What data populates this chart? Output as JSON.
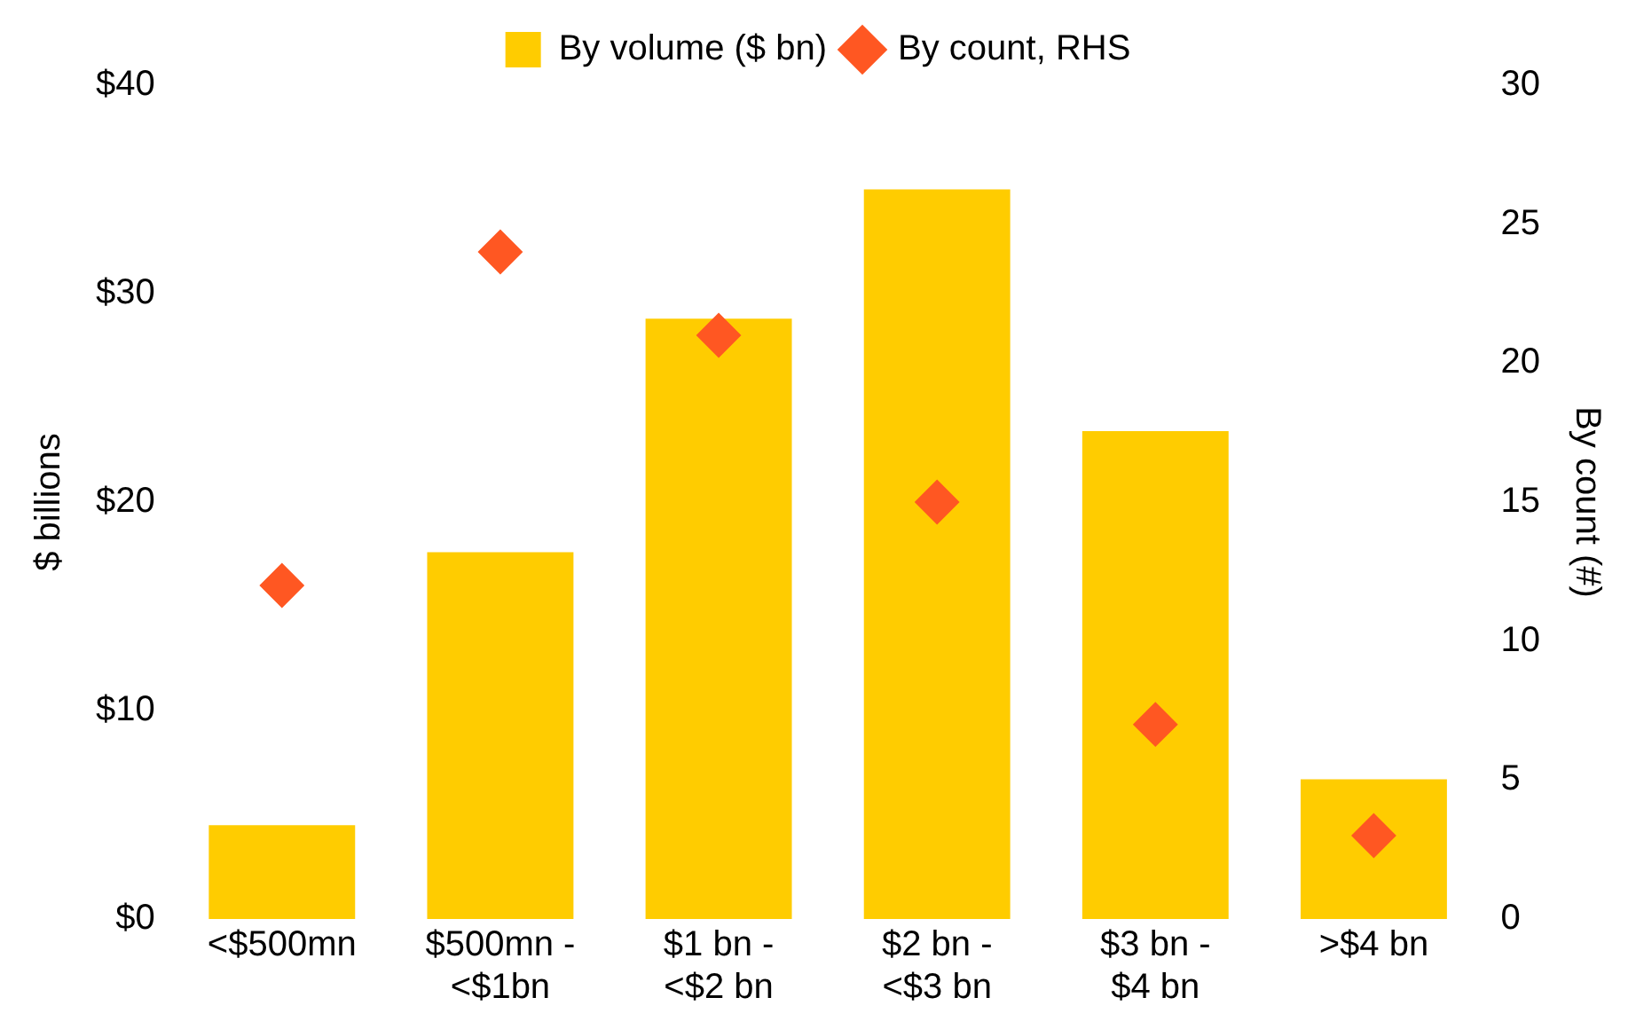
{
  "chart_data": {
    "type": "bar",
    "categories": [
      "<$500mn",
      "$500mn -\n<$1bn",
      "$1 bn -\n<$2 bn",
      "$2 bn -\n<$3 bn",
      "$3 bn -\n$4 bn",
      ">$4 bn"
    ],
    "series": [
      {
        "name": "By volume ($ bn)",
        "color": "#ffcc00",
        "values": [
          4.5,
          17.6,
          28.8,
          35.0,
          23.4,
          6.7
        ]
      },
      {
        "name": "By count, RHS",
        "type": "scatter",
        "axis": "y2",
        "color": "#ff5722",
        "values": [
          12,
          24,
          21,
          15,
          7,
          3
        ]
      }
    ],
    "ylabel": "$ billions",
    "y2label": "By count (#)",
    "ylim": [
      0,
      40
    ],
    "yticks": [
      {
        "value": 0,
        "label": "$0"
      },
      {
        "value": 10,
        "label": "$10"
      },
      {
        "value": 20,
        "label": "$20"
      },
      {
        "value": 30,
        "label": "$30"
      },
      {
        "value": 40,
        "label": "$40"
      }
    ],
    "y2lim": [
      0,
      30
    ],
    "y2ticks": [
      0,
      5,
      10,
      15,
      20,
      25,
      30
    ],
    "grid": false,
    "legend": "top",
    "marker": "diamond"
  }
}
